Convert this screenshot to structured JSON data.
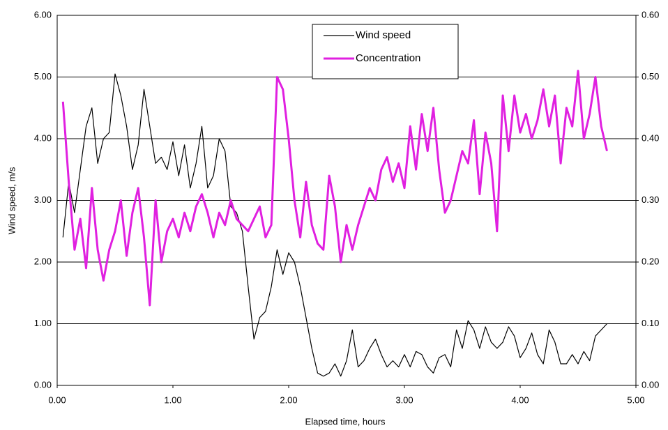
{
  "chart_data": {
    "type": "line",
    "x_label": "Elapsed time, hours",
    "y_label": "Wind speed, m/s",
    "x": [
      0.05,
      0.1,
      0.15,
      0.2,
      0.25,
      0.3,
      0.35,
      0.4,
      0.45,
      0.5,
      0.55,
      0.6,
      0.65,
      0.7,
      0.75,
      0.8,
      0.85,
      0.9,
      0.95,
      1.0,
      1.05,
      1.1,
      1.15,
      1.2,
      1.25,
      1.3,
      1.35,
      1.4,
      1.45,
      1.5,
      1.55,
      1.6,
      1.65,
      1.7,
      1.75,
      1.8,
      1.85,
      1.9,
      1.95,
      2.0,
      2.05,
      2.1,
      2.15,
      2.2,
      2.25,
      2.3,
      2.35,
      2.4,
      2.45,
      2.5,
      2.55,
      2.6,
      2.65,
      2.7,
      2.75,
      2.8,
      2.85,
      2.9,
      2.95,
      3.0,
      3.05,
      3.1,
      3.15,
      3.2,
      3.25,
      3.3,
      3.35,
      3.4,
      3.45,
      3.5,
      3.55,
      3.6,
      3.65,
      3.7,
      3.75,
      3.8,
      3.85,
      3.9,
      3.95,
      4.0,
      4.05,
      4.1,
      4.15,
      4.2,
      4.25,
      4.3,
      4.35,
      4.4,
      4.45,
      4.5,
      4.55,
      4.6,
      4.65,
      4.7,
      4.75
    ],
    "series": [
      {
        "name": "Wind speed",
        "color": "#000000",
        "axis": "y",
        "values": [
          2.4,
          3.3,
          2.8,
          3.5,
          4.2,
          4.5,
          3.6,
          4.0,
          4.1,
          5.05,
          4.7,
          4.2,
          3.5,
          3.9,
          4.8,
          4.2,
          3.6,
          3.7,
          3.5,
          3.95,
          3.4,
          3.9,
          3.2,
          3.6,
          4.2,
          3.2,
          3.4,
          4.0,
          3.8,
          2.9,
          2.8,
          2.5,
          1.6,
          0.75,
          1.1,
          1.2,
          1.6,
          2.2,
          1.8,
          2.15,
          2.0,
          1.6,
          1.1,
          0.6,
          0.2,
          0.15,
          0.2,
          0.35,
          0.15,
          0.4,
          0.9,
          0.3,
          0.4,
          0.6,
          0.75,
          0.5,
          0.3,
          0.4,
          0.3,
          0.5,
          0.3,
          0.55,
          0.5,
          0.3,
          0.2,
          0.45,
          0.5,
          0.3,
          0.9,
          0.6,
          1.05,
          0.9,
          0.6,
          0.95,
          0.7,
          0.6,
          0.7,
          0.95,
          0.8,
          0.45,
          0.6,
          0.85,
          0.5,
          0.35,
          0.9,
          0.7,
          0.35,
          0.35,
          0.5,
          0.35,
          0.55,
          0.4,
          0.8,
          0.9,
          1.0
        ]
      },
      {
        "name": "Concentration",
        "color": "#e020e0",
        "axis": "y2",
        "values": [
          0.46,
          0.33,
          0.22,
          0.27,
          0.19,
          0.32,
          0.22,
          0.17,
          0.22,
          0.25,
          0.3,
          0.21,
          0.28,
          0.32,
          0.24,
          0.13,
          0.3,
          0.2,
          0.25,
          0.27,
          0.24,
          0.28,
          0.25,
          0.29,
          0.31,
          0.28,
          0.24,
          0.28,
          0.26,
          0.3,
          0.27,
          0.26,
          0.25,
          0.27,
          0.29,
          0.24,
          0.26,
          0.5,
          0.48,
          0.4,
          0.3,
          0.24,
          0.33,
          0.26,
          0.23,
          0.22,
          0.34,
          0.29,
          0.2,
          0.26,
          0.22,
          0.26,
          0.29,
          0.32,
          0.3,
          0.35,
          0.37,
          0.33,
          0.36,
          0.32,
          0.42,
          0.35,
          0.44,
          0.38,
          0.45,
          0.35,
          0.28,
          0.3,
          0.34,
          0.38,
          0.36,
          0.43,
          0.31,
          0.41,
          0.36,
          0.25,
          0.47,
          0.38,
          0.47,
          0.41,
          0.44,
          0.4,
          0.43,
          0.48,
          0.42,
          0.47,
          0.36,
          0.45,
          0.42,
          0.51,
          0.4,
          0.44,
          0.5,
          0.42,
          0.38
        ]
      }
    ],
    "xlim": [
      0,
      5
    ],
    "xticks": [
      {
        "value": 0,
        "label": "0.00"
      },
      {
        "value": 1,
        "label": "1.00"
      },
      {
        "value": 2,
        "label": "2.00"
      },
      {
        "value": 3,
        "label": "3.00"
      },
      {
        "value": 4,
        "label": "4.00"
      },
      {
        "value": 5,
        "label": "5.00"
      }
    ],
    "ylim": [
      0,
      6
    ],
    "yticks": [
      {
        "value": 0,
        "label": "0.00"
      },
      {
        "value": 1,
        "label": "1.00"
      },
      {
        "value": 2,
        "label": "2.00"
      },
      {
        "value": 3,
        "label": "3.00"
      },
      {
        "value": 4,
        "label": "4.00"
      },
      {
        "value": 5,
        "label": "5.00"
      },
      {
        "value": 6,
        "label": "6.00"
      }
    ],
    "y2lim": [
      0,
      0.6
    ],
    "y2ticks": [
      {
        "value": 0,
        "label": "0.00"
      },
      {
        "value": 0.1,
        "label": "0.10"
      },
      {
        "value": 0.2,
        "label": "0.20"
      },
      {
        "value": 0.3,
        "label": "0.30"
      },
      {
        "value": 0.4,
        "label": "0.40"
      },
      {
        "value": 0.5,
        "label": "0.50"
      },
      {
        "value": 0.6,
        "label": "0.60"
      }
    ],
    "grid": true,
    "legend": "top"
  }
}
